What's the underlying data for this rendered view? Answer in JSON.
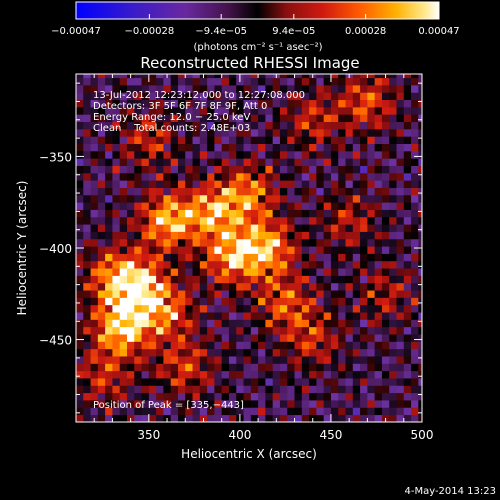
{
  "chart_data": {
    "type": "heatmap",
    "title": "Reconstructed RHESSI Image",
    "xlabel": "Heliocentric X (arcsec)",
    "ylabel": "Heliocentric Y (arcsec)",
    "xlim": [
      310,
      500
    ],
    "ylim": [
      -495,
      -305
    ],
    "x_ticks": [
      350,
      400,
      450,
      500
    ],
    "x_tick_labels": [
      "350",
      "400",
      "450",
      "500"
    ],
    "y_ticks": [
      -350,
      -400,
      -450
    ],
    "y_tick_labels": [
      "−350",
      "−400",
      "−450"
    ],
    "colorbar": {
      "range": [
        -0.00047,
        0.00047
      ],
      "ticks": [
        -0.00047,
        -0.00028,
        -9.4e-05,
        9.4e-05,
        0.00028,
        0.00047
      ],
      "tick_labels": [
        "−0.00047",
        "−0.00028",
        "−9.4e−05",
        "9.4e−05",
        "0.00028",
        "0.00047"
      ],
      "label": "(photons cm⁻² s⁻¹ asec⁻²)"
    },
    "annotations": [
      "13-Jul-2012 12:23:12.000 to 12:27:08.000",
      "Detectors: 3F 5F 6F 7F 8F 9F, Att 0",
      "Energy Range: 12.0 − 25.0 keV",
      "Clean    Total counts: 2.48E+03"
    ],
    "peak": {
      "x": 335,
      "y": -443,
      "label": "Position of Peak = [335,−443]"
    },
    "brightness_centers": [
      {
        "x": 335,
        "y": -443,
        "value": 0.00047
      },
      {
        "x": 345,
        "y": -420,
        "value": 0.00038
      },
      {
        "x": 330,
        "y": -415,
        "value": 0.0003
      },
      {
        "x": 360,
        "y": -385,
        "value": 0.00042
      },
      {
        "x": 385,
        "y": -380,
        "value": 0.00035
      },
      {
        "x": 395,
        "y": -405,
        "value": 0.00036
      },
      {
        "x": 415,
        "y": -400,
        "value": 0.0004
      },
      {
        "x": 405,
        "y": -370,
        "value": 0.00032
      },
      {
        "x": 360,
        "y": -435,
        "value": 0.0003
      },
      {
        "x": 370,
        "y": -465,
        "value": 0.00025
      },
      {
        "x": 425,
        "y": -430,
        "value": 0.00028
      },
      {
        "x": 440,
        "y": -450,
        "value": 0.00022
      },
      {
        "x": 470,
        "y": -320,
        "value": 0.00028
      },
      {
        "x": 440,
        "y": -330,
        "value": 0.00022
      },
      {
        "x": 460,
        "y": -385,
        "value": 0.0002
      },
      {
        "x": 480,
        "y": -425,
        "value": 0.00018
      },
      {
        "x": 325,
        "y": -470,
        "value": 0.00022
      },
      {
        "x": 350,
        "y": -340,
        "value": 0.00022
      }
    ]
  },
  "footer": {
    "date": "4-May-2014 13:23"
  }
}
